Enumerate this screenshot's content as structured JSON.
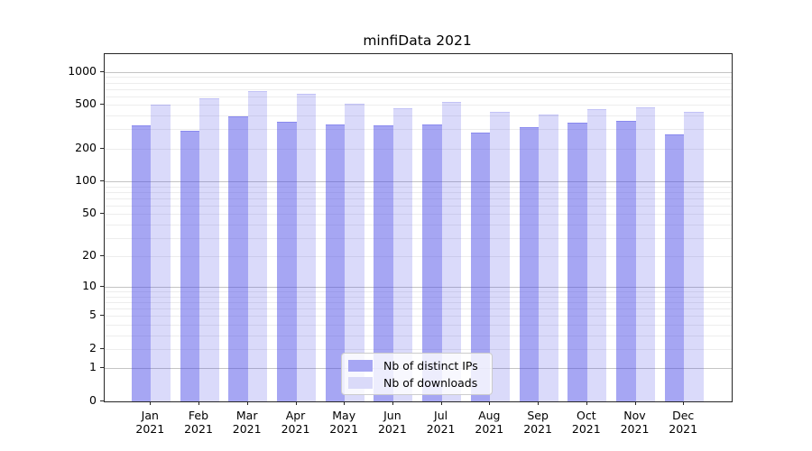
{
  "title": "minfiData 2021",
  "colors": {
    "bar_ips_fill": "rgba(70,70,230,0.48)",
    "bar_ips_edge": "rgba(70,70,230,0.30)",
    "bar_ips_solid": "#a6a6f3",
    "bar_downloads_fill": "rgba(70,70,230,0.20)",
    "bar_downloads_edge": "rgba(70,70,230,0.16)",
    "bar_downloads_solid": "#dadaf9",
    "grid_major": "#c4c4c4",
    "grid_minor": "#ededed",
    "spine": "#262626"
  },
  "legend": {
    "items": [
      {
        "label": "Nb of distinct IPs",
        "series": "ips"
      },
      {
        "label": "Nb of downloads",
        "series": "downloads"
      }
    ]
  },
  "chart_data": {
    "type": "bar",
    "title": "minfiData 2021",
    "xlabel": "",
    "ylabel": "",
    "categories": [
      "Jan 2021",
      "Feb 2021",
      "Mar 2021",
      "Apr 2021",
      "May 2021",
      "Jun 2021",
      "Jul 2021",
      "Aug 2021",
      "Sep 2021",
      "Oct 2021",
      "Nov 2021",
      "Dec 2021"
    ],
    "series": [
      {
        "key": "ips",
        "name": "Nb of distinct IPs",
        "values": [
          325,
          290,
          395,
          350,
          330,
          325,
          330,
          280,
          315,
          345,
          360,
          270
        ]
      },
      {
        "key": "downloads",
        "name": "Nb of downloads",
        "values": [
          500,
          580,
          670,
          635,
          515,
          465,
          530,
          435,
          410,
          460,
          478,
          435
        ]
      }
    ],
    "yscale": "log1p",
    "ylim": [
      0,
      1455
    ],
    "y_ticks": [
      0,
      1,
      2,
      5,
      10,
      20,
      50,
      100,
      200,
      500,
      1000
    ],
    "y_major_grid": [
      1,
      10,
      100,
      1000
    ],
    "y_minor_grid": [
      2,
      3,
      4,
      5,
      6,
      7,
      8,
      9,
      20,
      30,
      40,
      50,
      60,
      70,
      80,
      90,
      200,
      300,
      400,
      500,
      600,
      700,
      800,
      900
    ],
    "grid": "horizontal",
    "legend_position": "lower center"
  }
}
